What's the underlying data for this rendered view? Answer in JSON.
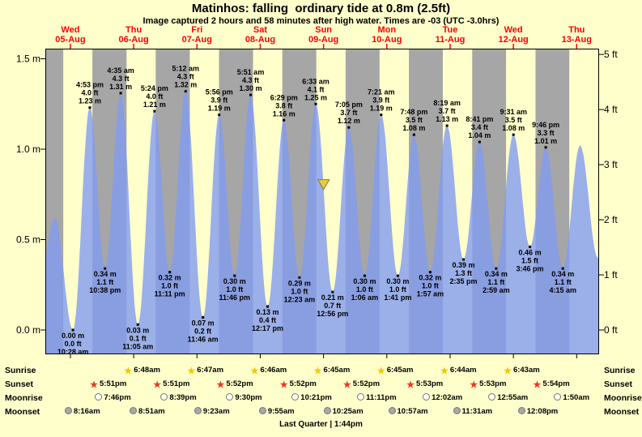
{
  "title": "Matinhos: falling  ordinary tide at 0.8m (2.5ft)",
  "subtitle": "Image captured 2 hours and 58 minutes after high water. Times are -03 (UTC -3.0hrs)",
  "day_axis": [
    {
      "name": "Wed",
      "date": "05-Aug"
    },
    {
      "name": "Thu",
      "date": "06-Aug"
    },
    {
      "name": "Fri",
      "date": "07-Aug"
    },
    {
      "name": "Sat",
      "date": "08-Aug"
    },
    {
      "name": "Sun",
      "date": "09-Aug"
    },
    {
      "name": "Mon",
      "date": "10-Aug"
    },
    {
      "name": "Tue",
      "date": "11-Aug"
    },
    {
      "name": "Wed",
      "date": "12-Aug"
    },
    {
      "name": "Thu",
      "date": "13-Aug"
    }
  ],
  "chart_data": {
    "type": "area",
    "title": "Matinhos tide height curve, Wed 05-Aug to Thu 13-Aug",
    "x_axis_unit": "hours from Wed 05-Aug 00:00",
    "x_range_hours": [
      0,
      210
    ],
    "y_axis_left": {
      "labels": [
        "1.5 m",
        "1.0 m",
        "0.5 m",
        "0.0 m"
      ],
      "values_m": [
        1.5,
        1.0,
        0.5,
        0.0
      ]
    },
    "y_axis_right": {
      "labels": [
        "5 ft",
        "4 ft",
        "3 ft",
        "2 ft",
        "1 ft",
        "0 ft"
      ],
      "values_ft": [
        5,
        4,
        3,
        2,
        1,
        0
      ]
    },
    "y_range_m": [
      -0.135,
      1.556
    ],
    "tide_events": [
      {
        "type": "low",
        "time": "10:28 am",
        "t_hours": 10.47,
        "height_m": 0.0,
        "height_ft": 0.0
      },
      {
        "type": "high",
        "time": "4:53 pm",
        "t_hours": 16.88,
        "height_m": 1.23,
        "height_ft": 4.0
      },
      {
        "type": "low",
        "time": "10:38 pm",
        "t_hours": 22.63,
        "height_m": 0.34,
        "height_ft": 1.1
      },
      {
        "type": "high",
        "time": "4:35 am",
        "t_hours": 28.58,
        "height_m": 1.31,
        "height_ft": 4.3
      },
      {
        "type": "low",
        "time": "11:05 am",
        "t_hours": 35.08,
        "height_m": 0.03,
        "height_ft": 0.1
      },
      {
        "type": "high",
        "time": "5:24 pm",
        "t_hours": 41.4,
        "height_m": 1.21,
        "height_ft": 4.0
      },
      {
        "type": "low",
        "time": "11:11 pm",
        "t_hours": 47.18,
        "height_m": 0.32,
        "height_ft": 1.0
      },
      {
        "type": "high",
        "time": "5:12 am",
        "t_hours": 53.2,
        "height_m": 1.32,
        "height_ft": 4.3
      },
      {
        "type": "low",
        "time": "11:46 am",
        "t_hours": 59.77,
        "height_m": 0.07,
        "height_ft": 0.2
      },
      {
        "type": "high",
        "time": "5:56 pm",
        "t_hours": 65.93,
        "height_m": 1.19,
        "height_ft": 3.9
      },
      {
        "type": "low",
        "time": "11:46 pm",
        "t_hours": 71.77,
        "height_m": 0.3,
        "height_ft": 1.0
      },
      {
        "type": "high",
        "time": "5:51 am",
        "t_hours": 77.85,
        "height_m": 1.3,
        "height_ft": 4.3
      },
      {
        "type": "low",
        "time": "12:17 pm",
        "t_hours": 84.28,
        "height_m": 0.13,
        "height_ft": 0.4
      },
      {
        "type": "high",
        "time": "6:29 pm",
        "t_hours": 90.48,
        "height_m": 1.16,
        "height_ft": 3.8
      },
      {
        "type": "low",
        "time": "12:23 am",
        "t_hours": 96.38,
        "height_m": 0.29,
        "height_ft": 1.0
      },
      {
        "type": "high",
        "time": "6:33 am",
        "t_hours": 102.55,
        "height_m": 1.25,
        "height_ft": 4.1
      },
      {
        "type": "low",
        "time": "12:56 pm",
        "t_hours": 108.93,
        "height_m": 0.21,
        "height_ft": 0.7
      },
      {
        "type": "high",
        "time": "7:05 pm",
        "t_hours": 115.08,
        "height_m": 1.12,
        "height_ft": 3.7
      },
      {
        "type": "low",
        "time": "1:06 am",
        "t_hours": 121.1,
        "height_m": 0.3,
        "height_ft": 1.0
      },
      {
        "type": "high",
        "time": "7:21 am",
        "t_hours": 127.35,
        "height_m": 1.19,
        "height_ft": 3.9
      },
      {
        "type": "low",
        "time": "1:41 pm",
        "t_hours": 133.68,
        "height_m": 0.3,
        "height_ft": 1.0
      },
      {
        "type": "high",
        "time": "7:48 pm",
        "t_hours": 139.8,
        "height_m": 1.08,
        "height_ft": 3.5
      },
      {
        "type": "low",
        "time": "1:57 am",
        "t_hours": 145.95,
        "height_m": 0.32,
        "height_ft": 1.0
      },
      {
        "type": "high",
        "time": "8:19 am",
        "t_hours": 152.32,
        "height_m": 1.13,
        "height_ft": 3.7
      },
      {
        "type": "low",
        "time": "2:35 pm",
        "t_hours": 158.58,
        "height_m": 0.39,
        "height_ft": 1.3
      },
      {
        "type": "high",
        "time": "8:41 pm",
        "t_hours": 164.68,
        "height_m": 1.04,
        "height_ft": 3.4
      },
      {
        "type": "low",
        "time": "2:59 am",
        "t_hours": 170.98,
        "height_m": 0.34,
        "height_ft": 1.1
      },
      {
        "type": "high",
        "time": "9:31 am",
        "t_hours": 177.52,
        "height_m": 1.08,
        "height_ft": 3.5
      },
      {
        "type": "low",
        "time": "3:46 pm",
        "t_hours": 183.77,
        "height_m": 0.46,
        "height_ft": 1.5
      },
      {
        "type": "high",
        "time": "9:46 pm",
        "t_hours": 189.77,
        "height_m": 1.01,
        "height_ft": 3.3
      },
      {
        "type": "low",
        "time": "4:15 am",
        "t_hours": 196.25,
        "height_m": 0.34,
        "height_ft": 1.1
      }
    ],
    "unlabeled_edge_events": {
      "before": [
        {
          "t_hours": -2.0,
          "height_m": 0.3
        },
        {
          "t_hours": 3.6,
          "height_m": 0.62
        }
      ],
      "after": [
        {
          "t_hours": 202.8,
          "height_m": 1.02
        },
        {
          "t_hours": 209.5,
          "height_m": 0.4
        }
      ]
    },
    "current_marker": {
      "t_hours": 105.53,
      "height_m": 0.8,
      "meaning": "capture time, tide 0.8m falling"
    },
    "night_bands_hours": [
      [
        0,
        6.8
      ],
      [
        17.85,
        30.8
      ],
      [
        41.85,
        54.78
      ],
      [
        65.87,
        78.77
      ],
      [
        89.87,
        102.75
      ],
      [
        113.87,
        126.75
      ],
      [
        137.88,
        150.73
      ],
      [
        161.88,
        174.72
      ],
      [
        185.9,
        198.7
      ]
    ]
  },
  "astro": {
    "row_labels": [
      "Sunrise",
      "Sunset",
      "Moonrise",
      "Moonset"
    ],
    "sunrise": [
      {
        "time": "6:48am",
        "t_hours": 30.8
      },
      {
        "time": "6:47am",
        "t_hours": 54.78
      },
      {
        "time": "6:46am",
        "t_hours": 78.77
      },
      {
        "time": "6:45am",
        "t_hours": 102.75
      },
      {
        "time": "6:45am",
        "t_hours": 126.75
      },
      {
        "time": "6:44am",
        "t_hours": 150.73
      },
      {
        "time": "6:43am",
        "t_hours": 174.72
      }
    ],
    "sunset": [
      {
        "time": "5:51pm",
        "t_hours": 17.85
      },
      {
        "time": "5:51pm",
        "t_hours": 41.85
      },
      {
        "time": "5:52pm",
        "t_hours": 65.87
      },
      {
        "time": "5:52pm",
        "t_hours": 89.87
      },
      {
        "time": "5:52pm",
        "t_hours": 113.87
      },
      {
        "time": "5:53pm",
        "t_hours": 137.88
      },
      {
        "time": "5:53pm",
        "t_hours": 161.88
      },
      {
        "time": "5:54pm",
        "t_hours": 185.9
      }
    ],
    "moonrise": [
      {
        "time": "7:46pm",
        "t_hours": 19.77
      },
      {
        "time": "8:39pm",
        "t_hours": 44.65
      },
      {
        "time": "9:30pm",
        "t_hours": 69.5
      },
      {
        "time": "10:21pm",
        "t_hours": 94.35
      },
      {
        "time": "11:11pm",
        "t_hours": 119.18
      },
      {
        "time": "12:02am",
        "t_hours": 144.03
      },
      {
        "time": "12:55am",
        "t_hours": 168.92
      },
      {
        "time": "1:50am",
        "t_hours": 193.83
      }
    ],
    "moonset": [
      {
        "time": "8:16am",
        "t_hours": 8.27
      },
      {
        "time": "8:51am",
        "t_hours": 32.85
      },
      {
        "time": "9:23am",
        "t_hours": 57.38
      },
      {
        "time": "9:55am",
        "t_hours": 81.92
      },
      {
        "time": "10:25am",
        "t_hours": 106.42
      },
      {
        "time": "10:57am",
        "t_hours": 130.95
      },
      {
        "time": "11:31am",
        "t_hours": 155.52
      },
      {
        "time": "12:08pm",
        "t_hours": 180.13
      }
    ],
    "moon_phase_note": "Last Quarter | 1:44pm"
  },
  "colors": {
    "page_bg": "#ffffcc",
    "night_band": "#a6a6a6",
    "tide_fill": "rgba(130,155,240,0.8)",
    "day_label": "#ff0000",
    "marker_fill": "#e6cf3e",
    "marker_stroke": "#8a7a20",
    "sunrise_star": "#f5c400",
    "sunset_star": "#e8391d",
    "moonrise_circle": "#fffff2",
    "moonset_circle": "#a8a8a8"
  }
}
